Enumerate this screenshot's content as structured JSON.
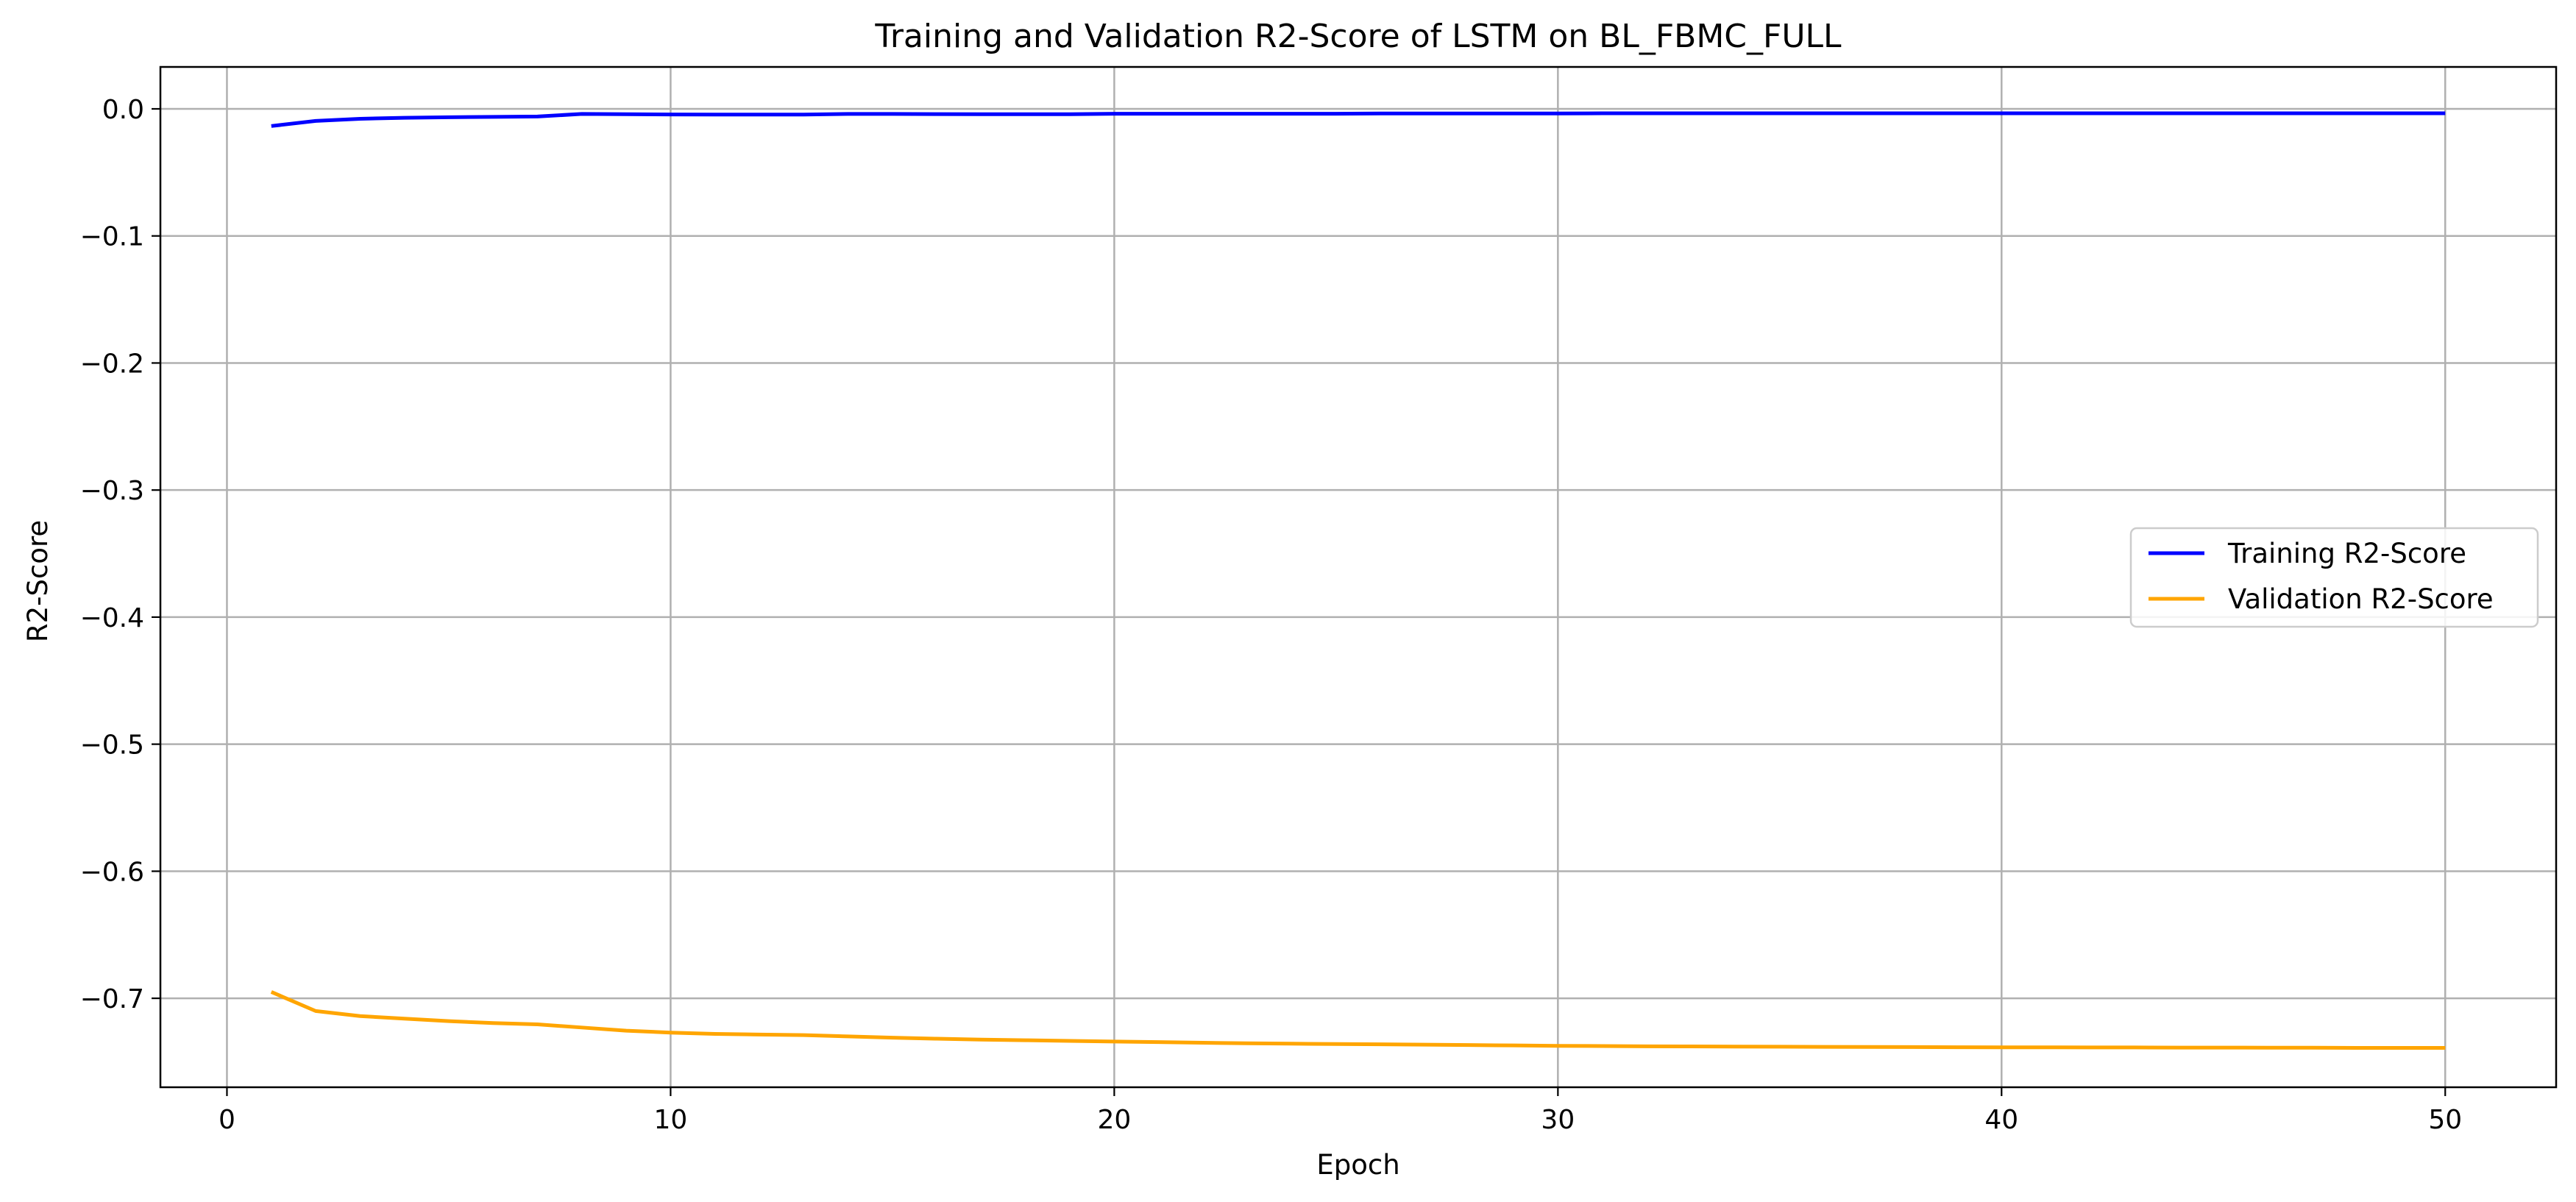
{
  "chart_data": {
    "type": "line",
    "title": "Training and Validation R2-Score of LSTM on BL_FBMC_FULL",
    "xlabel": "Epoch",
    "ylabel": "R2-Score",
    "xlim": [
      -1.5,
      52.5
    ],
    "ylim": [
      -0.77,
      0.033
    ],
    "xticks": [
      0,
      10,
      20,
      30,
      40,
      50
    ],
    "xtick_labels": [
      "0",
      "10",
      "20",
      "30",
      "40",
      "50"
    ],
    "yticks": [
      0.0,
      -0.1,
      -0.2,
      -0.3,
      -0.4,
      -0.5,
      -0.6,
      -0.7
    ],
    "ytick_labels": [
      "0.0",
      "−0.1",
      "−0.2",
      "−0.3",
      "−0.4",
      "−0.5",
      "−0.6",
      "−0.7"
    ],
    "grid": true,
    "legend": "center-right",
    "x": [
      1,
      2,
      3,
      4,
      5,
      6,
      7,
      8,
      9,
      10,
      11,
      12,
      13,
      14,
      15,
      16,
      17,
      18,
      19,
      20,
      21,
      22,
      23,
      24,
      25,
      26,
      27,
      28,
      29,
      30,
      31,
      32,
      33,
      34,
      35,
      36,
      37,
      38,
      39,
      40,
      41,
      42,
      43,
      44,
      45,
      46,
      47,
      48,
      49,
      50
    ],
    "series": [
      {
        "name": "Training R2-Score",
        "color": "#0000ff",
        "values": [
          -0.0135,
          -0.0095,
          -0.0078,
          -0.007,
          -0.0066,
          -0.0063,
          -0.006,
          -0.004,
          -0.0042,
          -0.0044,
          -0.0045,
          -0.0045,
          -0.0045,
          -0.004,
          -0.004,
          -0.0041,
          -0.0042,
          -0.0042,
          -0.0042,
          -0.0038,
          -0.0038,
          -0.0038,
          -0.0038,
          -0.0038,
          -0.0038,
          -0.0036,
          -0.0036,
          -0.0036,
          -0.0036,
          -0.0036,
          -0.0035,
          -0.0035,
          -0.0035,
          -0.0035,
          -0.0035,
          -0.0035,
          -0.0035,
          -0.0035,
          -0.0035,
          -0.0035,
          -0.0035,
          -0.0035,
          -0.0035,
          -0.0035,
          -0.0035,
          -0.0035,
          -0.0035,
          -0.0035,
          -0.0035,
          -0.0035
        ]
      },
      {
        "name": "Validation R2-Score",
        "color": "#ffa500",
        "values": [
          -0.695,
          -0.71,
          -0.714,
          -0.716,
          -0.718,
          -0.7195,
          -0.7205,
          -0.723,
          -0.7255,
          -0.727,
          -0.728,
          -0.7285,
          -0.729,
          -0.73,
          -0.731,
          -0.7318,
          -0.7325,
          -0.733,
          -0.7335,
          -0.734,
          -0.7345,
          -0.735,
          -0.7354,
          -0.7357,
          -0.736,
          -0.7362,
          -0.7365,
          -0.7368,
          -0.7371,
          -0.7374,
          -0.7376,
          -0.7378,
          -0.7379,
          -0.738,
          -0.7381,
          -0.7382,
          -0.7383,
          -0.7384,
          -0.7385,
          -0.7386,
          -0.7386,
          -0.7387,
          -0.7387,
          -0.7388,
          -0.7388,
          -0.7389,
          -0.7389,
          -0.739,
          -0.739,
          -0.739
        ]
      }
    ]
  }
}
